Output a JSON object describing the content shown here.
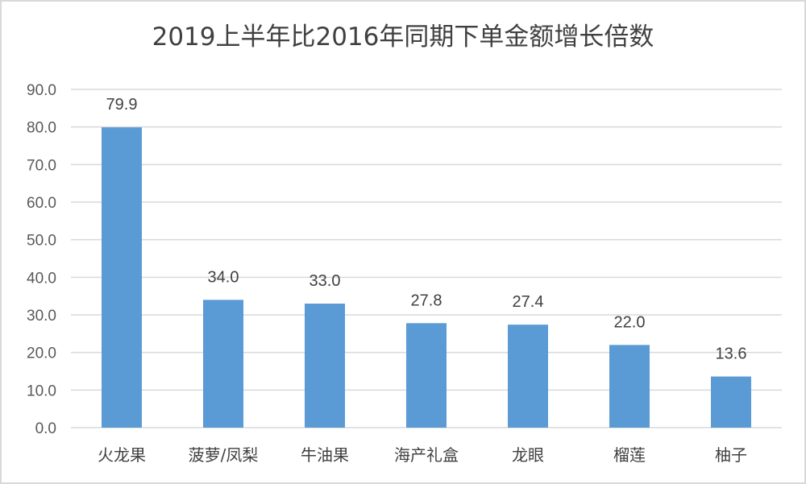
{
  "chart_data": {
    "type": "bar",
    "title": "2019上半年比2016年同期下单金额增长倍数",
    "categories": [
      "火龙果",
      "菠萝/凤梨",
      "牛油果",
      "海产礼盒",
      "龙眼",
      "榴莲",
      "柚子"
    ],
    "values": [
      79.9,
      34.0,
      33.0,
      27.8,
      27.4,
      22.0,
      13.6
    ],
    "data_labels": [
      "79.9",
      "34.0",
      "33.0",
      "27.8",
      "27.4",
      "22.0",
      "13.6"
    ],
    "xlabel": "",
    "ylabel": "",
    "ylim": [
      0,
      90
    ],
    "yticks": [
      "0.0",
      "10.0",
      "20.0",
      "30.0",
      "40.0",
      "50.0",
      "60.0",
      "70.0",
      "80.0",
      "90.0"
    ],
    "grid": true,
    "legend": "none",
    "bar_color": "#5b9bd5"
  }
}
